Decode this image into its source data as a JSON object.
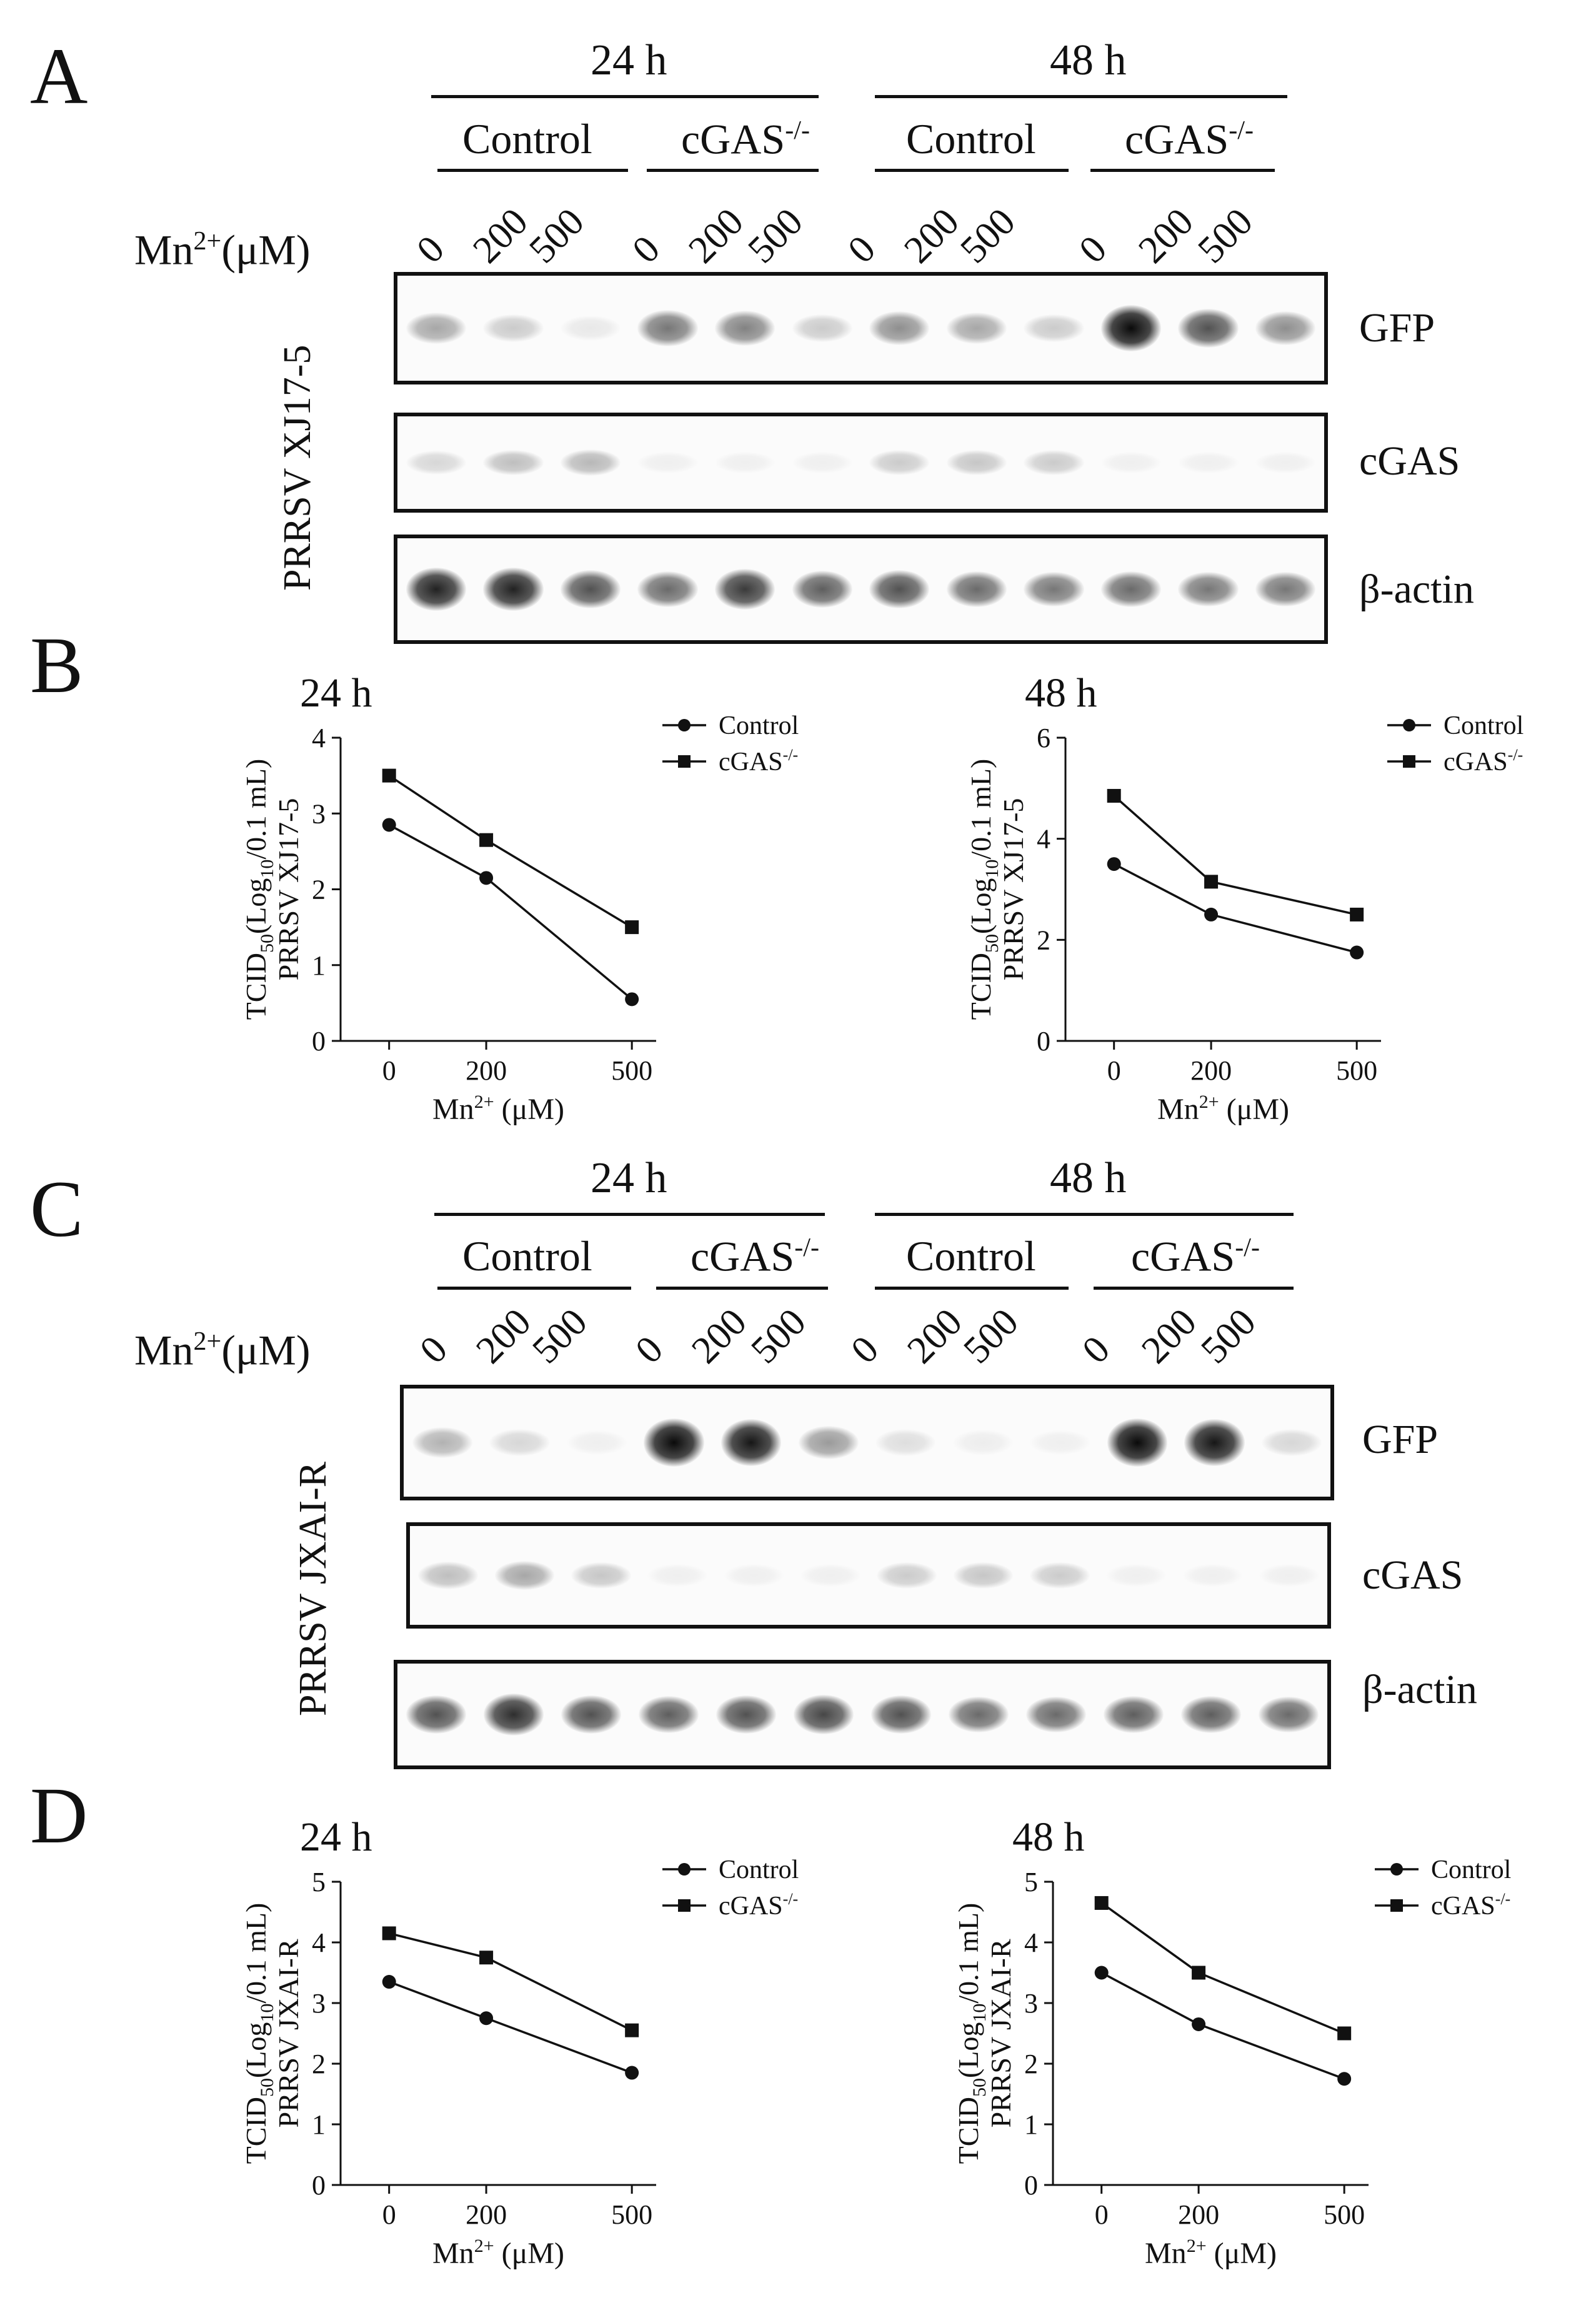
{
  "panels": {
    "A": {
      "letter": "A",
      "virus_label": "PRRSV XJ17-5",
      "mn_label": "Mn",
      "mn_sup": "2+",
      "mn_unit": "(μM)",
      "time_labels": [
        "24 h",
        "48 h"
      ],
      "group_labels": [
        "Control",
        "cGAS",
        "Control",
        "cGAS"
      ],
      "group_sup": "-/-",
      "lane_labels": [
        "0",
        "200",
        "500",
        "0",
        "200",
        "500",
        "0",
        "200",
        "500",
        "0",
        "200",
        "500"
      ],
      "blots": [
        {
          "name": "GFP",
          "intensity": [
            0.35,
            0.2,
            0.08,
            0.55,
            0.5,
            0.2,
            0.45,
            0.35,
            0.2,
            1.0,
            0.7,
            0.45
          ]
        },
        {
          "name": "cGAS",
          "intensity": [
            0.15,
            0.25,
            0.28,
            0.03,
            0.03,
            0.03,
            0.2,
            0.22,
            0.2,
            0.03,
            0.03,
            0.03
          ]
        },
        {
          "name": "β-actin",
          "intensity": [
            0.9,
            0.9,
            0.7,
            0.6,
            0.8,
            0.65,
            0.7,
            0.6,
            0.55,
            0.6,
            0.55,
            0.55
          ]
        }
      ]
    },
    "B": {
      "letter": "B"
    },
    "C": {
      "letter": "C",
      "virus_label": "PRRSV JXAI-R",
      "mn_label": "Mn",
      "mn_sup": "2+",
      "mn_unit": "(μM)",
      "time_labels": [
        "24 h",
        "48 h"
      ],
      "group_labels": [
        "Control",
        "cGAS",
        "Control",
        "cGAS"
      ],
      "group_sup": "-/-",
      "lane_labels": [
        "0",
        "200",
        "500",
        "0",
        "200",
        "500",
        "0",
        "200",
        "500",
        "0",
        "200",
        "500"
      ],
      "blots": [
        {
          "name": "GFP",
          "intensity": [
            0.3,
            0.15,
            0.05,
            1.0,
            0.95,
            0.4,
            0.12,
            0.06,
            0.05,
            1.0,
            0.95,
            0.15
          ]
        },
        {
          "name": "cGAS",
          "intensity": [
            0.25,
            0.35,
            0.22,
            0.03,
            0.03,
            0.03,
            0.2,
            0.22,
            0.2,
            0.03,
            0.03,
            0.03
          ]
        },
        {
          "name": "β-actin",
          "intensity": [
            0.7,
            0.85,
            0.7,
            0.65,
            0.7,
            0.75,
            0.7,
            0.6,
            0.6,
            0.65,
            0.65,
            0.6
          ]
        }
      ]
    },
    "D": {
      "letter": "D"
    }
  },
  "chart_data": [
    {
      "type": "line",
      "panel": "B",
      "title": "24 h",
      "x": [
        0,
        200,
        500
      ],
      "series": [
        {
          "name": "Control",
          "marker": "circle",
          "values": [
            2.85,
            2.15,
            0.55
          ]
        },
        {
          "name": "cGAS",
          "name_sup": "-/-",
          "marker": "square",
          "values": [
            3.5,
            2.65,
            1.5
          ]
        }
      ],
      "xlabel": "Mn",
      "xlabel_sup": "2+",
      "xlabel_unit": "(μM)",
      "ylabel_line1_main": "TCID",
      "ylabel_line1_sub": "50",
      "ylabel_line1_a": "(Log",
      "ylabel_line1_sub2": "10",
      "ylabel_line1_b": "/0.1 mL)",
      "ylabel_line2": "PRRSV XJ17-5",
      "xticks": [
        0,
        200,
        500
      ],
      "yticks": [
        0,
        1,
        2,
        3,
        4
      ],
      "ylim": [
        0,
        4
      ],
      "xlim": [
        -100,
        550
      ],
      "legend_position": "top-right",
      "grid": false
    },
    {
      "type": "line",
      "panel": "B",
      "title": "48 h",
      "x": [
        0,
        200,
        500
      ],
      "series": [
        {
          "name": "Control",
          "marker": "circle",
          "values": [
            3.5,
            2.5,
            1.75
          ]
        },
        {
          "name": "cGAS",
          "name_sup": "-/-",
          "marker": "square",
          "values": [
            4.85,
            3.15,
            2.5
          ]
        }
      ],
      "xlabel": "Mn",
      "xlabel_sup": "2+",
      "xlabel_unit": "(μM)",
      "ylabel_line1_main": "TCID",
      "ylabel_line1_sub": "50",
      "ylabel_line1_a": "(Log",
      "ylabel_line1_sub2": "10",
      "ylabel_line1_b": "/0.1 mL)",
      "ylabel_line2": "PRRSV XJ17-5",
      "xticks": [
        0,
        200,
        500
      ],
      "yticks": [
        0,
        2,
        4,
        6
      ],
      "ylim": [
        0,
        6
      ],
      "xlim": [
        -100,
        550
      ],
      "legend_position": "top-right",
      "grid": false
    },
    {
      "type": "line",
      "panel": "D",
      "title": "24 h",
      "x": [
        0,
        200,
        500
      ],
      "series": [
        {
          "name": "Control",
          "marker": "circle",
          "values": [
            3.35,
            2.75,
            1.85
          ]
        },
        {
          "name": "cGAS",
          "name_sup": "-/-",
          "marker": "square",
          "values": [
            4.15,
            3.75,
            2.55
          ]
        }
      ],
      "xlabel": "Mn",
      "xlabel_sup": "2+",
      "xlabel_unit": "(μM)",
      "ylabel_line1_main": "TCID",
      "ylabel_line1_sub": "50",
      "ylabel_line1_a": "(Log",
      "ylabel_line1_sub2": "10",
      "ylabel_line1_b": "/0.1 mL)",
      "ylabel_line2": "PRRSV JXAI-R",
      "xticks": [
        0,
        200,
        500
      ],
      "yticks": [
        0,
        1,
        2,
        3,
        4,
        5
      ],
      "ylim": [
        0,
        5
      ],
      "xlim": [
        -100,
        550
      ],
      "legend_position": "top-right",
      "grid": false
    },
    {
      "type": "line",
      "panel": "D",
      "title": "48 h",
      "x": [
        0,
        200,
        500
      ],
      "series": [
        {
          "name": "Control",
          "marker": "circle",
          "values": [
            3.5,
            2.65,
            1.75
          ]
        },
        {
          "name": "cGAS",
          "name_sup": "-/-",
          "marker": "square",
          "values": [
            4.65,
            3.5,
            2.5
          ]
        }
      ],
      "xlabel": "Mn",
      "xlabel_sup": "2+",
      "xlabel_unit": "(μM)",
      "ylabel_line1_main": "TCID",
      "ylabel_line1_sub": "50",
      "ylabel_line1_a": "(Log",
      "ylabel_line1_sub2": "10",
      "ylabel_line1_b": "/0.1 mL)",
      "ylabel_line2": "PRRSV JXAI-R",
      "xticks": [
        0,
        200,
        500
      ],
      "yticks": [
        0,
        1,
        2,
        3,
        4,
        5
      ],
      "ylim": [
        0,
        5
      ],
      "xlim": [
        -100,
        550
      ],
      "legend_position": "top-right",
      "grid": false
    }
  ]
}
